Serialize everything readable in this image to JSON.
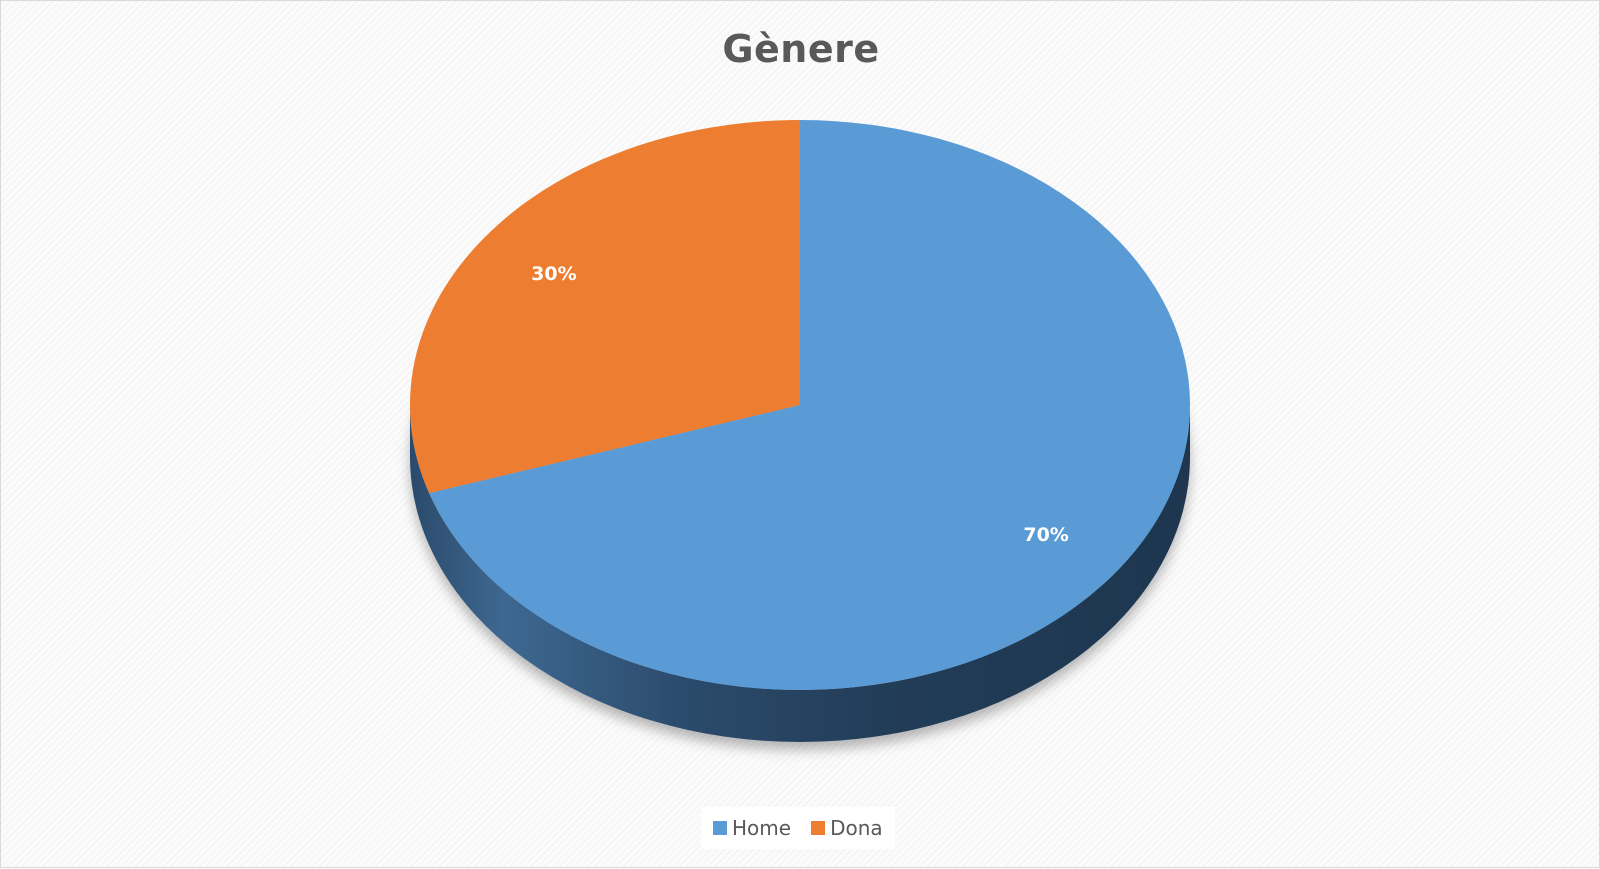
{
  "chart_data": {
    "type": "pie",
    "title": "Gènere",
    "categories": [
      "Home",
      "Dona"
    ],
    "values": [
      70,
      30
    ],
    "labels": [
      "70%",
      "30%"
    ],
    "colors": [
      "#5b9bd5",
      "#ed7d31"
    ],
    "legend": "bottom",
    "style": "3d"
  },
  "legend": {
    "items": [
      {
        "label": "Home",
        "color": "#5b9bd5"
      },
      {
        "label": "Dona",
        "color": "#ed7d31"
      }
    ]
  }
}
